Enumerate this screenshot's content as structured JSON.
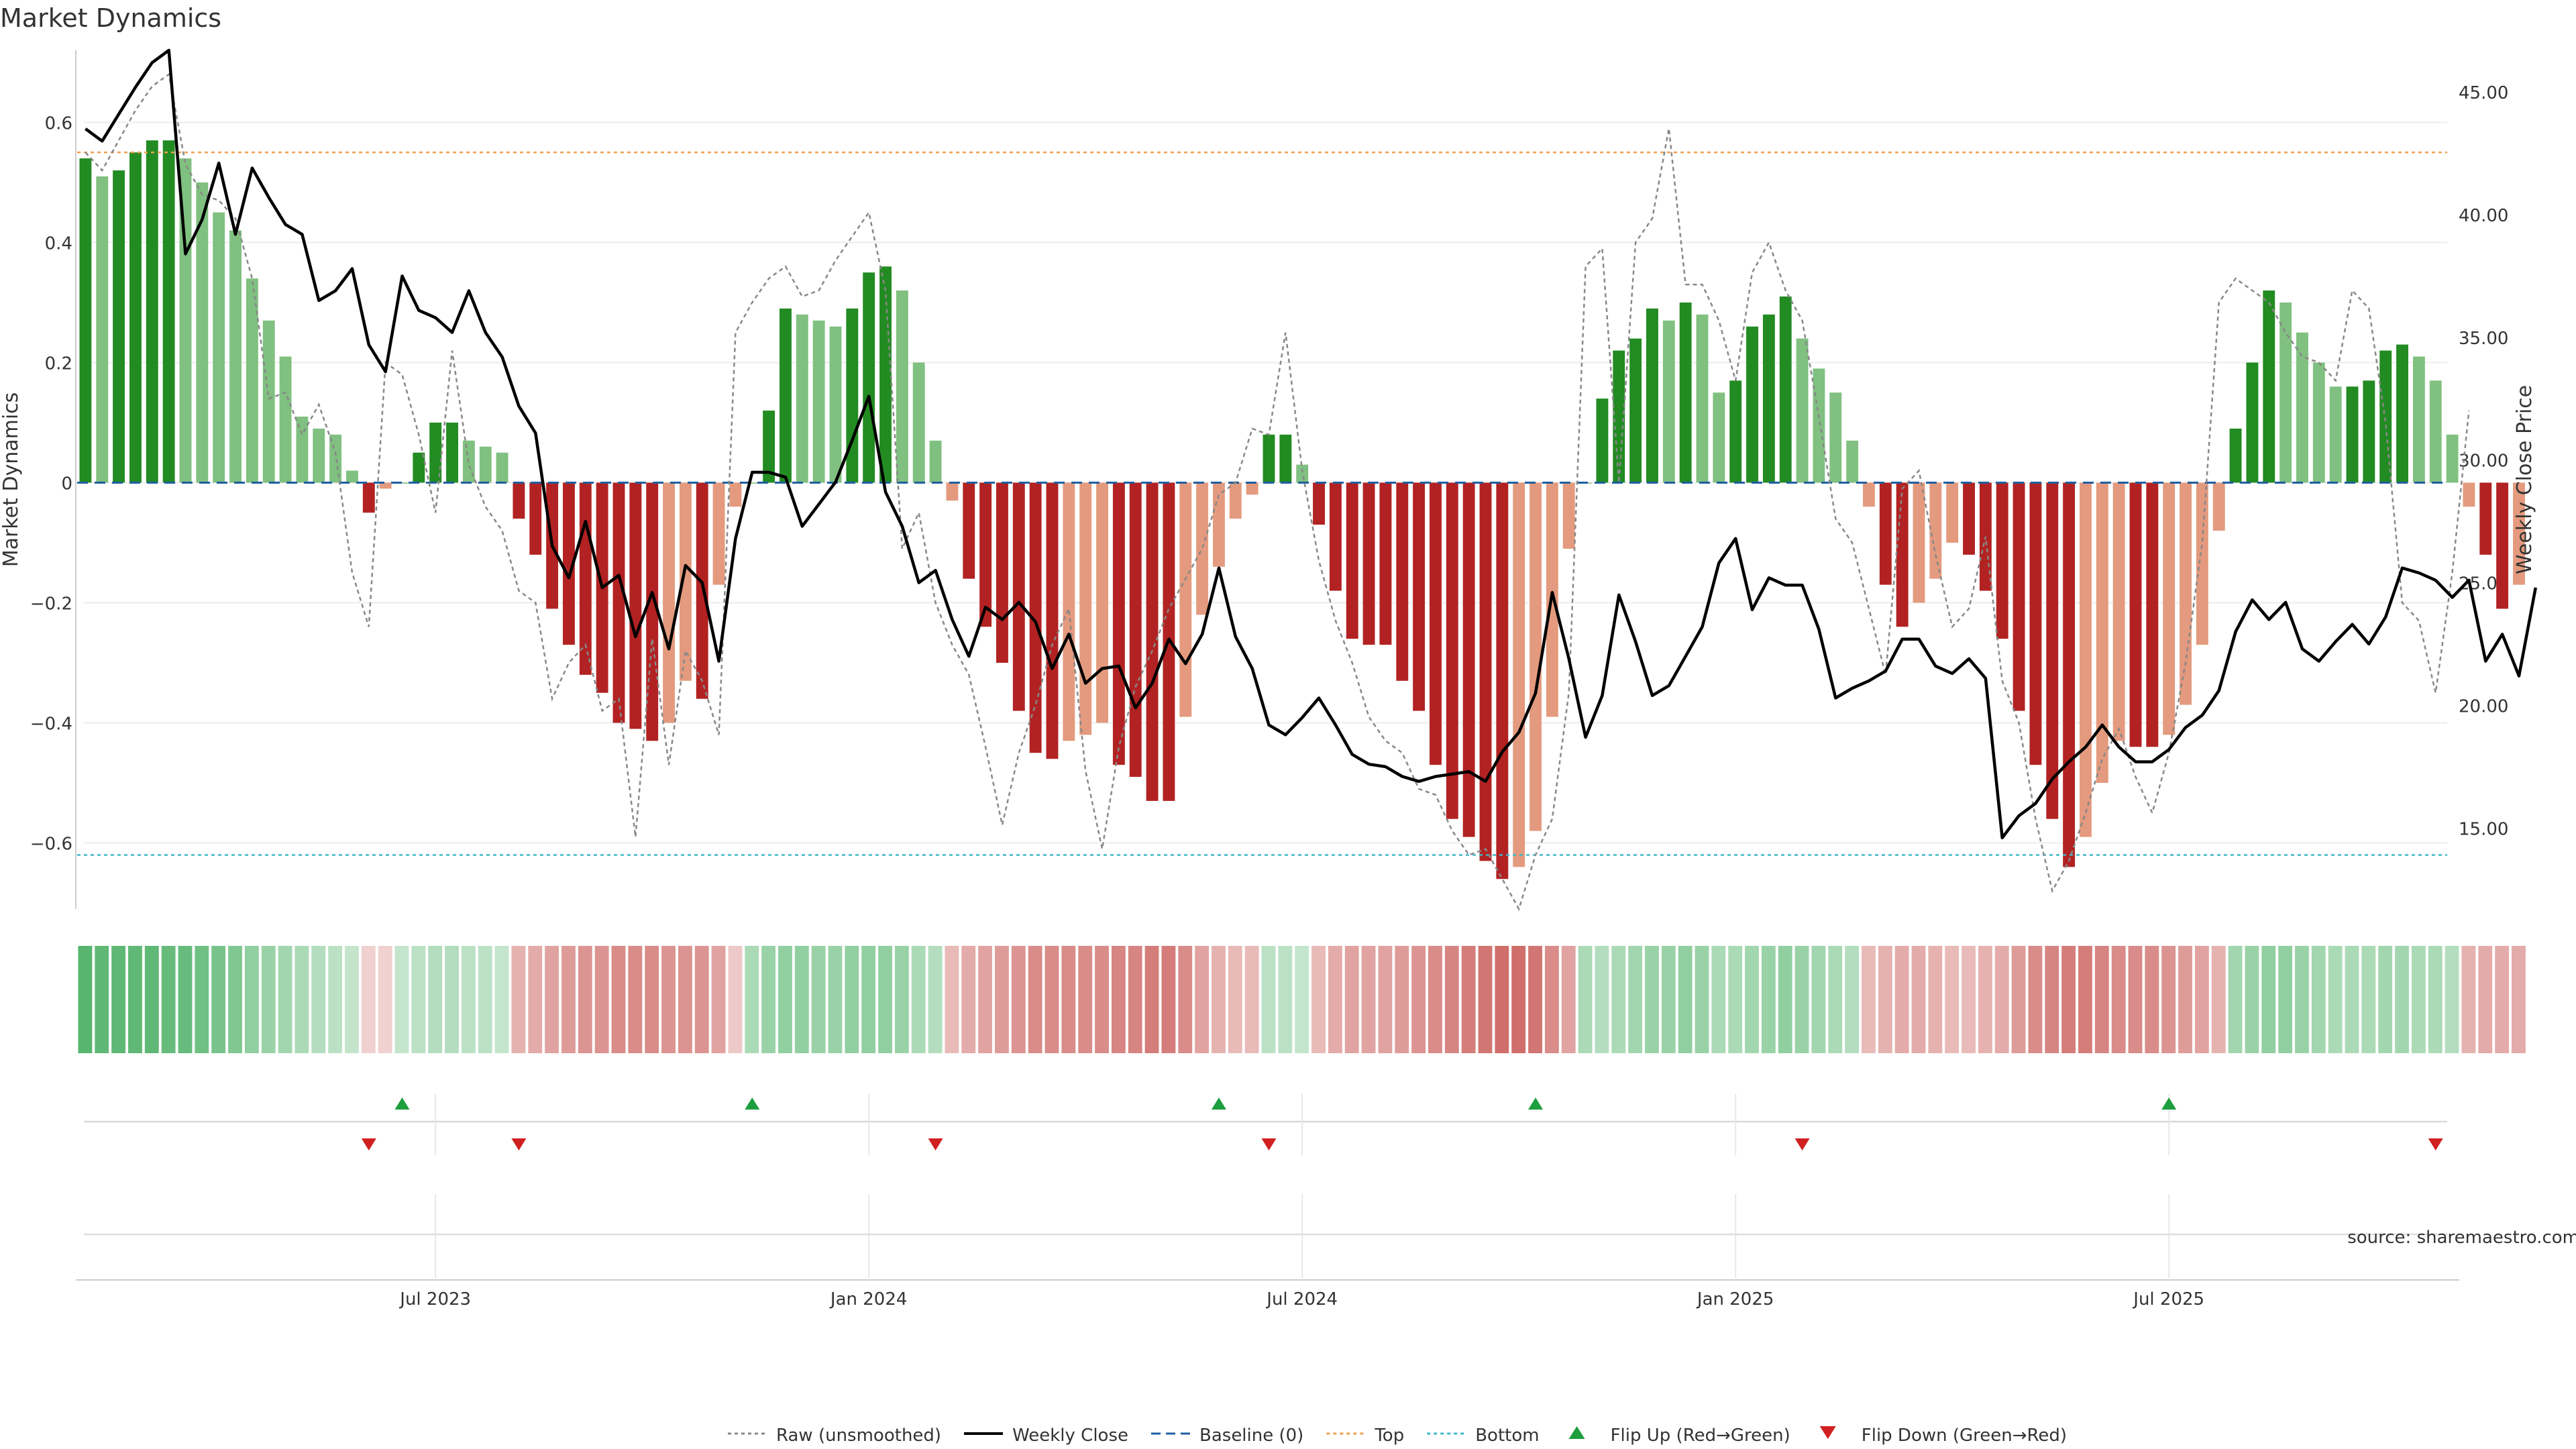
{
  "chart_data": {
    "type": "bar",
    "title": "Market Dynamics",
    "ylabel_left": "Market Dynamics",
    "ylabel_right": "Weekly Close Price",
    "source": "source: sharemaestro.com",
    "left_axis": {
      "range": [
        -0.71,
        0.72
      ],
      "ticks": [
        -0.6,
        -0.4,
        -0.2,
        0,
        0.2,
        0.4,
        0.6
      ],
      "tick_labels": [
        "−0.6",
        "−0.4",
        "−0.2",
        "0",
        "0.2",
        "0.4",
        "0.6"
      ]
    },
    "right_axis": {
      "range": [
        11.7,
        46.7
      ],
      "ticks": [
        15,
        20,
        25,
        30,
        35,
        40,
        45
      ],
      "tick_labels": [
        "15.00",
        "20.00",
        "25.00",
        "30.00",
        "35.00",
        "40.00",
        "45.00"
      ]
    },
    "x_range": [
      0,
      143
    ],
    "x_ticks": [
      {
        "label": "Jul 2023",
        "week": 21.5
      },
      {
        "label": "Jan 2024",
        "week": 47.5
      },
      {
        "label": "Jul 2024",
        "week": 73.5
      },
      {
        "label": "Jan 2025",
        "week": 99.5
      },
      {
        "label": "Jul 2025",
        "week": 125.5
      }
    ],
    "top_line": 0.55,
    "bottom_line": -0.62,
    "colors": {
      "green_strong": "#228b22",
      "green_light": "#80c080",
      "red_strong": "#b22222",
      "red_light": "#e49a7e",
      "close_line": "#000000",
      "raw_line": "#888888",
      "baseline": "#1f5fa0",
      "top": "#f0a050",
      "bottom": "#40b8c8",
      "flip_up": "#1e9e3e",
      "flip_down": "#d02020"
    },
    "momentum": [
      0.54,
      0.51,
      0.52,
      0.55,
      0.57,
      0.57,
      0.54,
      0.5,
      0.45,
      0.42,
      0.34,
      0.27,
      0.21,
      0.11,
      0.09,
      0.08,
      0.02,
      -0.05,
      -0.01,
      0.0,
      0.05,
      0.1,
      0.1,
      0.07,
      0.06,
      0.05,
      -0.06,
      -0.12,
      -0.21,
      -0.27,
      -0.32,
      -0.35,
      -0.4,
      -0.41,
      -0.43,
      -0.4,
      -0.33,
      -0.36,
      -0.17,
      -0.04,
      0.0,
      0.12,
      0.29,
      0.28,
      0.27,
      0.26,
      0.29,
      0.35,
      0.36,
      0.32,
      0.2,
      0.07,
      -0.03,
      -0.16,
      -0.24,
      -0.3,
      -0.38,
      -0.45,
      -0.46,
      -0.43,
      -0.42,
      -0.4,
      -0.47,
      -0.49,
      -0.53,
      -0.53,
      -0.39,
      -0.22,
      -0.14,
      -0.06,
      -0.02,
      0.08,
      0.08,
      0.03,
      -0.07,
      -0.18,
      -0.26,
      -0.27,
      -0.27,
      -0.33,
      -0.38,
      -0.47,
      -0.56,
      -0.59,
      -0.63,
      -0.66,
      -0.64,
      -0.58,
      -0.39,
      -0.11,
      0.0,
      0.14,
      0.22,
      0.24,
      0.29,
      0.27,
      0.3,
      0.28,
      0.15,
      0.17,
      0.26,
      0.28,
      0.31,
      0.24,
      0.19,
      0.15,
      0.07,
      -0.04,
      -0.17,
      -0.24,
      -0.2,
      -0.16,
      -0.1,
      -0.12,
      -0.18,
      -0.26,
      -0.38,
      -0.47,
      -0.56,
      -0.64,
      -0.59,
      -0.5,
      -0.43,
      -0.44,
      -0.44,
      -0.42,
      -0.37,
      -0.27,
      -0.08,
      0.09,
      0.2,
      0.32,
      0.3,
      0.25,
      0.2,
      0.16,
      0.16,
      0.17,
      0.22,
      0.23,
      0.21,
      0.17,
      0.08,
      -0.04,
      -0.12,
      -0.21,
      -0.17
    ],
    "weekly_close": [
      43.5,
      43.0,
      44.1,
      45.2,
      46.2,
      46.7,
      38.4,
      39.8,
      42.1,
      39.2,
      41.9,
      40.7,
      39.6,
      39.2,
      36.5,
      36.9,
      37.8,
      34.7,
      33.6,
      37.5,
      36.1,
      35.8,
      35.2,
      36.9,
      35.2,
      34.2,
      32.2,
      31.1,
      26.5,
      25.2,
      27.5,
      24.8,
      25.3,
      22.8,
      24.6,
      22.3,
      25.7,
      25.0,
      21.8,
      26.8,
      29.5,
      29.5,
      29.3,
      27.3,
      28.2,
      29.1,
      30.8,
      32.6,
      28.7,
      27.3,
      25.0,
      25.5,
      23.5,
      22.0,
      24.0,
      23.5,
      24.2,
      23.4,
      21.5,
      22.9,
      20.9,
      21.5,
      21.6,
      19.9,
      20.9,
      22.7,
      21.7,
      22.9,
      25.6,
      22.8,
      21.5,
      19.2,
      18.8,
      19.5,
      20.3,
      19.2,
      18.0,
      17.6,
      17.5,
      17.1,
      16.9,
      17.1,
      17.2,
      17.3,
      16.9,
      18.1,
      18.9,
      20.5,
      24.6,
      21.9,
      18.7,
      20.4,
      24.5,
      22.6,
      20.4,
      20.8,
      22.0,
      23.2,
      25.8,
      26.8,
      23.9,
      25.2,
      24.9,
      24.9,
      23.1,
      20.3,
      20.7,
      21.0,
      21.4,
      22.7,
      22.7,
      21.6,
      21.3,
      21.9,
      21.1,
      14.6,
      15.5,
      16.0,
      17.0,
      17.7,
      18.3,
      19.2,
      18.3,
      17.7,
      17.7,
      18.2,
      19.1,
      19.6,
      20.6,
      23.0,
      24.3,
      23.5,
      24.2,
      22.3,
      21.8,
      22.6,
      23.3,
      22.5,
      23.6,
      25.6,
      25.4,
      25.1,
      24.4,
      25.1,
      21.8,
      22.9,
      21.2,
      24.8
    ],
    "raw": [
      0.55,
      0.52,
      0.57,
      0.62,
      0.66,
      0.68,
      0.53,
      0.48,
      0.47,
      0.44,
      0.34,
      0.14,
      0.15,
      0.08,
      0.13,
      0.05,
      -0.15,
      -0.24,
      0.2,
      0.18,
      0.08,
      -0.05,
      0.22,
      0.03,
      -0.04,
      -0.08,
      -0.18,
      -0.2,
      -0.36,
      -0.3,
      -0.27,
      -0.38,
      -0.36,
      -0.59,
      -0.26,
      -0.47,
      -0.28,
      -0.33,
      -0.42,
      0.25,
      0.3,
      0.34,
      0.36,
      0.31,
      0.32,
      0.37,
      0.41,
      0.45,
      0.32,
      -0.11,
      -0.05,
      -0.2,
      -0.27,
      -0.32,
      -0.44,
      -0.57,
      -0.45,
      -0.37,
      -0.27,
      -0.21,
      -0.48,
      -0.61,
      -0.44,
      -0.34,
      -0.28,
      -0.21,
      -0.16,
      -0.11,
      -0.02,
      0.0,
      0.09,
      0.08,
      0.25,
      0.02,
      -0.13,
      -0.23,
      -0.3,
      -0.39,
      -0.43,
      -0.45,
      -0.51,
      -0.52,
      -0.58,
      -0.62,
      -0.61,
      -0.66,
      -0.71,
      -0.62,
      -0.56,
      -0.35,
      0.36,
      0.39,
      0.0,
      0.4,
      0.44,
      0.59,
      0.33,
      0.33,
      0.27,
      0.17,
      0.35,
      0.4,
      0.32,
      0.27,
      0.11,
      -0.06,
      -0.1,
      -0.21,
      -0.32,
      -0.01,
      0.02,
      -0.12,
      -0.24,
      -0.21,
      -0.09,
      -0.33,
      -0.4,
      -0.56,
      -0.68,
      -0.63,
      -0.55,
      -0.46,
      -0.41,
      -0.49,
      -0.55,
      -0.45,
      -0.3,
      -0.1,
      0.3,
      0.34,
      0.32,
      0.3,
      0.25,
      0.21,
      0.2,
      0.17,
      0.32,
      0.29,
      0.1,
      -0.2,
      -0.23,
      -0.35,
      -0.15,
      0.12
    ],
    "signal_strength": [
      0.85,
      0.8,
      0.8,
      0.8,
      0.8,
      0.75,
      0.75,
      0.7,
      0.65,
      0.6,
      0.5,
      0.45,
      0.4,
      0.35,
      0.3,
      0.25,
      0.2,
      0.15,
      0.15,
      0.2,
      0.25,
      0.3,
      0.3,
      0.25,
      0.25,
      0.2,
      0.35,
      0.4,
      0.45,
      0.5,
      0.55,
      0.55,
      0.6,
      0.6,
      0.6,
      0.55,
      0.55,
      0.55,
      0.45,
      0.2,
      0.35,
      0.45,
      0.5,
      0.5,
      0.45,
      0.45,
      0.5,
      0.5,
      0.5,
      0.45,
      0.35,
      0.3,
      0.3,
      0.4,
      0.45,
      0.5,
      0.55,
      0.6,
      0.6,
      0.6,
      0.6,
      0.6,
      0.65,
      0.65,
      0.7,
      0.7,
      0.6,
      0.45,
      0.35,
      0.3,
      0.3,
      0.25,
      0.25,
      0.2,
      0.3,
      0.4,
      0.45,
      0.45,
      0.45,
      0.5,
      0.55,
      0.6,
      0.65,
      0.7,
      0.75,
      0.8,
      0.8,
      0.75,
      0.6,
      0.45,
      0.35,
      0.3,
      0.35,
      0.4,
      0.45,
      0.45,
      0.5,
      0.45,
      0.35,
      0.35,
      0.4,
      0.45,
      0.5,
      0.45,
      0.4,
      0.35,
      0.3,
      0.3,
      0.35,
      0.4,
      0.4,
      0.35,
      0.3,
      0.3,
      0.35,
      0.4,
      0.5,
      0.6,
      0.65,
      0.7,
      0.7,
      0.65,
      0.6,
      0.6,
      0.6,
      0.55,
      0.5,
      0.45,
      0.35,
      0.4,
      0.45,
      0.5,
      0.5,
      0.45,
      0.4,
      0.35,
      0.35,
      0.35,
      0.4,
      0.4,
      0.35,
      0.35,
      0.3,
      0.35,
      0.4,
      0.4,
      0.4
    ],
    "flip_up_weeks": [
      19,
      40,
      68,
      87,
      125
    ],
    "flip_down_weeks": [
      17,
      26,
      51,
      71,
      103,
      141
    ],
    "legend": [
      {
        "label": "Raw (unsmoothed)",
        "style": "dotted",
        "color": "#888888"
      },
      {
        "label": "Weekly Close",
        "style": "solid",
        "color": "#000000"
      },
      {
        "label": "Baseline (0)",
        "style": "dashed",
        "color": "#1f5fa0"
      },
      {
        "label": "Top",
        "style": "dotted",
        "color": "#f0a050"
      },
      {
        "label": "Bottom",
        "style": "dotted",
        "color": "#40b8c8"
      },
      {
        "label": "Flip Up (Red→Green)",
        "style": "triangle-up",
        "color": "#1e9e3e"
      },
      {
        "label": "Flip Down (Green→Red)",
        "style": "triangle-down",
        "color": "#d02020"
      }
    ]
  }
}
